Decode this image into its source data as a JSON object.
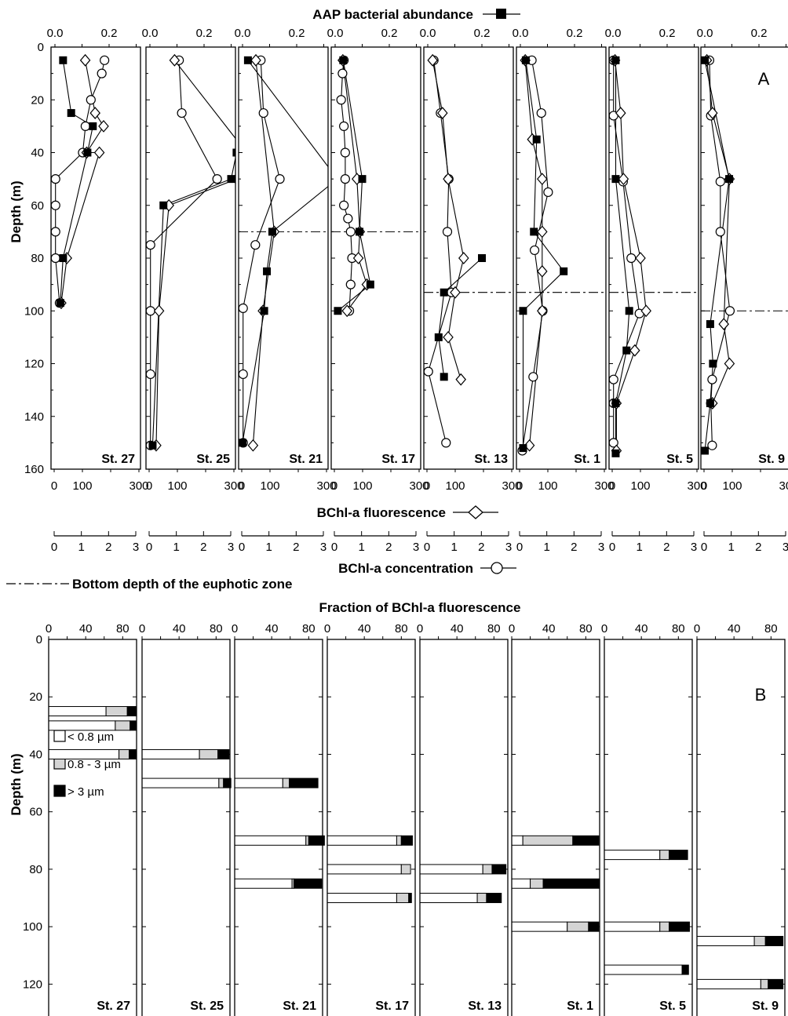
{
  "chart_data": [
    {
      "type": "scatter",
      "panel_label": "A",
      "top_axis_title": "AAP bacterial abundance",
      "middle_axis_title_1": "BChl-a fluorescence",
      "middle_axis_title_2": "BChl-a concentration",
      "euphotic_legend": "Bottom depth of the euphotic zone",
      "ylabel": "Depth (m)",
      "ylim": [
        0,
        160
      ],
      "yticks": [
        "0",
        "20",
        "40",
        "60",
        "80",
        "100",
        "120",
        "140",
        "160"
      ],
      "aap_ticks": [
        "0.0",
        "0.2"
      ],
      "fluor_ticks": [
        "0",
        "100",
        "300"
      ],
      "conc_ticks": [
        "0",
        "1",
        "2",
        "3"
      ],
      "aap_range": [
        0,
        0.4
      ],
      "fluor_range": [
        0,
        400
      ],
      "conc_range": [
        0,
        3
      ],
      "stations": [
        {
          "name": "St. 27",
          "euphotic_depth": null,
          "aap": [
            [
              5,
              0.03
            ],
            [
              25,
              0.06
            ],
            [
              30,
              0.14
            ],
            [
              40,
              0.12
            ],
            [
              80,
              0.03
            ],
            [
              97,
              0.02
            ]
          ],
          "fluor": [
            [
              5,
              110
            ],
            [
              25,
              145
            ],
            [
              30,
              175
            ],
            [
              40,
              115
            ],
            [
              40,
              160
            ],
            [
              80,
              45
            ],
            [
              97,
              25
            ]
          ],
          "conc": [
            [
              5,
              1.85
            ],
            [
              10,
              1.75
            ],
            [
              20,
              1.35
            ],
            [
              30,
              1.15
            ],
            [
              40,
              1.05
            ],
            [
              50,
              0.05
            ],
            [
              60,
              0.05
            ],
            [
              70,
              0.05
            ],
            [
              80,
              0.05
            ],
            [
              97,
              0.2
            ]
          ]
        },
        {
          "name": "St. 25",
          "euphotic_depth": null,
          "aap": [
            [
              40,
              0.32
            ],
            [
              50,
              0.3
            ],
            [
              60,
              0.05
            ],
            [
              151,
              0.01
            ]
          ],
          "fluor": [
            [
              5,
              90
            ],
            [
              40,
              345
            ],
            [
              50,
              310
            ],
            [
              60,
              70
            ],
            [
              100,
              35
            ],
            [
              151,
              25
            ]
          ],
          "conc": [
            [
              5,
              1.1
            ],
            [
              25,
              1.2
            ],
            [
              50,
              2.5
            ],
            [
              75,
              0.05
            ],
            [
              100,
              0.05
            ],
            [
              124,
              0.05
            ],
            [
              151,
              0.05
            ]
          ]
        },
        {
          "name": "St. 21",
          "euphotic_depth": 70,
          "aap": [
            [
              5,
              0.02
            ],
            [
              50,
              0.35
            ],
            [
              70,
              0.11
            ],
            [
              85,
              0.09
            ],
            [
              100,
              0.08
            ],
            [
              150,
              0.0
            ]
          ],
          "fluor": [
            [
              5,
              50
            ],
            [
              70,
              115
            ],
            [
              100,
              75
            ],
            [
              151,
              40
            ]
          ],
          "conc": [
            [
              5,
              0.7
            ],
            [
              25,
              0.8
            ],
            [
              50,
              1.4
            ],
            [
              75,
              0.5
            ],
            [
              99,
              0.05
            ],
            [
              124,
              0.05
            ],
            [
              150,
              0.05
            ]
          ]
        },
        {
          "name": "St. 17",
          "euphotic_depth": 70,
          "aap": [
            [
              5,
              0.03
            ],
            [
              50,
              0.1
            ],
            [
              70,
              0.09
            ],
            [
              90,
              0.13
            ],
            [
              100,
              0.01
            ]
          ],
          "fluor": [
            [
              5,
              30
            ],
            [
              50,
              80
            ],
            [
              70,
              90
            ],
            [
              80,
              85
            ],
            [
              90,
              115
            ],
            [
              100,
              45
            ]
          ],
          "conc": [
            [
              5,
              0.35
            ],
            [
              10,
              0.3
            ],
            [
              20,
              0.25
            ],
            [
              30,
              0.35
            ],
            [
              40,
              0.4
            ],
            [
              50,
              0.4
            ],
            [
              60,
              0.35
            ],
            [
              65,
              0.5
            ],
            [
              70,
              0.6
            ],
            [
              80,
              0.65
            ],
            [
              90,
              0.6
            ],
            [
              100,
              0.55
            ]
          ]
        },
        {
          "name": "St. 13",
          "euphotic_depth": 93,
          "aap": [
            [
              80,
              0.2
            ],
            [
              93,
              0.06
            ],
            [
              110,
              0.04
            ],
            [
              125,
              0.06
            ]
          ],
          "fluor": [
            [
              5,
              20
            ],
            [
              25,
              55
            ],
            [
              50,
              75
            ],
            [
              80,
              130
            ],
            [
              93,
              100
            ],
            [
              110,
              75
            ],
            [
              126,
              120
            ]
          ],
          "conc": [
            [
              5,
              0.25
            ],
            [
              25,
              0.5
            ],
            [
              50,
              0.8
            ],
            [
              70,
              0.75
            ],
            [
              93,
              0.9
            ],
            [
              123,
              0.05
            ],
            [
              150,
              0.7
            ]
          ]
        },
        {
          "name": "St. 1",
          "euphotic_depth": 93,
          "aap": [
            [
              5,
              0.02
            ],
            [
              35,
              0.06
            ],
            [
              70,
              0.05
            ],
            [
              85,
              0.16
            ],
            [
              100,
              0.01
            ],
            [
              152,
              0.01
            ]
          ],
          "fluor": [
            [
              5,
              20
            ],
            [
              35,
              45
            ],
            [
              50,
              80
            ],
            [
              70,
              80
            ],
            [
              85,
              80
            ],
            [
              100,
              80
            ],
            [
              151,
              35
            ]
          ],
          "conc": [
            [
              5,
              0.45
            ],
            [
              25,
              0.8
            ],
            [
              55,
              1.05
            ],
            [
              77,
              0.55
            ],
            [
              100,
              0.85
            ],
            [
              125,
              0.5
            ],
            [
              153,
              0.1
            ]
          ]
        },
        {
          "name": "St. 5",
          "euphotic_depth": 93,
          "aap": [
            [
              5,
              0.01
            ],
            [
              50,
              0.01
            ],
            [
              100,
              0.06
            ],
            [
              115,
              0.05
            ],
            [
              135,
              0.01
            ],
            [
              154,
              0.01
            ]
          ],
          "fluor": [
            [
              5,
              10
            ],
            [
              25,
              30
            ],
            [
              50,
              40
            ],
            [
              80,
              100
            ],
            [
              100,
              120
            ],
            [
              115,
              80
            ],
            [
              135,
              15
            ],
            [
              153,
              15
            ]
          ],
          "conc": [
            [
              5,
              0.05
            ],
            [
              26,
              0.05
            ],
            [
              51,
              0.4
            ],
            [
              80,
              0.7
            ],
            [
              101,
              1.0
            ],
            [
              126,
              0.05
            ],
            [
              135,
              0.05
            ],
            [
              150,
              0.05
            ]
          ]
        },
        {
          "name": "St. 9",
          "euphotic_depth": 100,
          "aap": [
            [
              5,
              0.0
            ],
            [
              50,
              0.09
            ],
            [
              105,
              0.02
            ],
            [
              120,
              0.03
            ],
            [
              135,
              0.02
            ],
            [
              153,
              0.0
            ]
          ],
          "fluor": [
            [
              5,
              10
            ],
            [
              25,
              30
            ],
            [
              50,
              90
            ],
            [
              105,
              70
            ],
            [
              120,
              90
            ],
            [
              135,
              30
            ]
          ],
          "conc": [
            [
              5,
              0.2
            ],
            [
              26,
              0.25
            ],
            [
              51,
              0.6
            ],
            [
              70,
              0.6
            ],
            [
              100,
              0.95
            ],
            [
              126,
              0.3
            ],
            [
              135,
              0.25
            ],
            [
              151,
              0.3
            ]
          ]
        }
      ]
    },
    {
      "type": "bar",
      "panel_label": "B",
      "title": "Fraction of BChl-a fluorescence",
      "ylabel": "Depth (m)",
      "ylim": [
        0,
        130
      ],
      "xlim": [
        0,
        95
      ],
      "yticks": [
        "0",
        "20",
        "40",
        "60",
        "80",
        "100",
        "120"
      ],
      "xticks": [
        "0",
        "40",
        "80"
      ],
      "legend": [
        "< 0.8 µm",
        "0.8 - 3 µm",
        "> 3 µm"
      ],
      "colors": [
        "#ffffff",
        "#d4d4d4",
        "#000000"
      ],
      "stations": [
        {
          "name": "St. 27",
          "bars": [
            [
              25,
              62,
              23,
              10
            ],
            [
              30,
              72,
              16,
              7
            ],
            [
              40,
              76,
              11,
              8
            ]
          ]
        },
        {
          "name": "St. 25",
          "bars": [
            [
              40,
              62,
              20,
              12
            ],
            [
              50,
              83,
              5,
              8
            ]
          ]
        },
        {
          "name": "St. 21",
          "bars": [
            [
              50,
              52,
              7,
              31
            ],
            [
              70,
              77,
              3,
              17
            ],
            [
              85,
              62,
              2,
              30
            ]
          ]
        },
        {
          "name": "St. 17",
          "bars": [
            [
              70,
              75,
              5,
              12
            ],
            [
              80,
              80,
              10,
              0
            ],
            [
              90,
              75,
              13,
              3
            ]
          ]
        },
        {
          "name": "St. 13",
          "bars": [
            [
              80,
              68,
              10,
              15
            ],
            [
              90,
              62,
              10,
              16
            ]
          ]
        },
        {
          "name": "St. 1",
          "bars": [
            [
              70,
              12,
              54,
              28
            ],
            [
              85,
              20,
              14,
              61
            ],
            [
              100,
              60,
              23,
              11
            ]
          ]
        },
        {
          "name": "St. 5",
          "bars": [
            [
              75,
              60,
              10,
              20
            ],
            [
              100,
              60,
              10,
              22
            ],
            [
              115,
              84,
              0,
              7
            ]
          ]
        },
        {
          "name": "St. 9",
          "bars": [
            [
              105,
              62,
              12,
              19
            ],
            [
              120,
              69,
              8,
              16
            ]
          ]
        }
      ]
    }
  ]
}
